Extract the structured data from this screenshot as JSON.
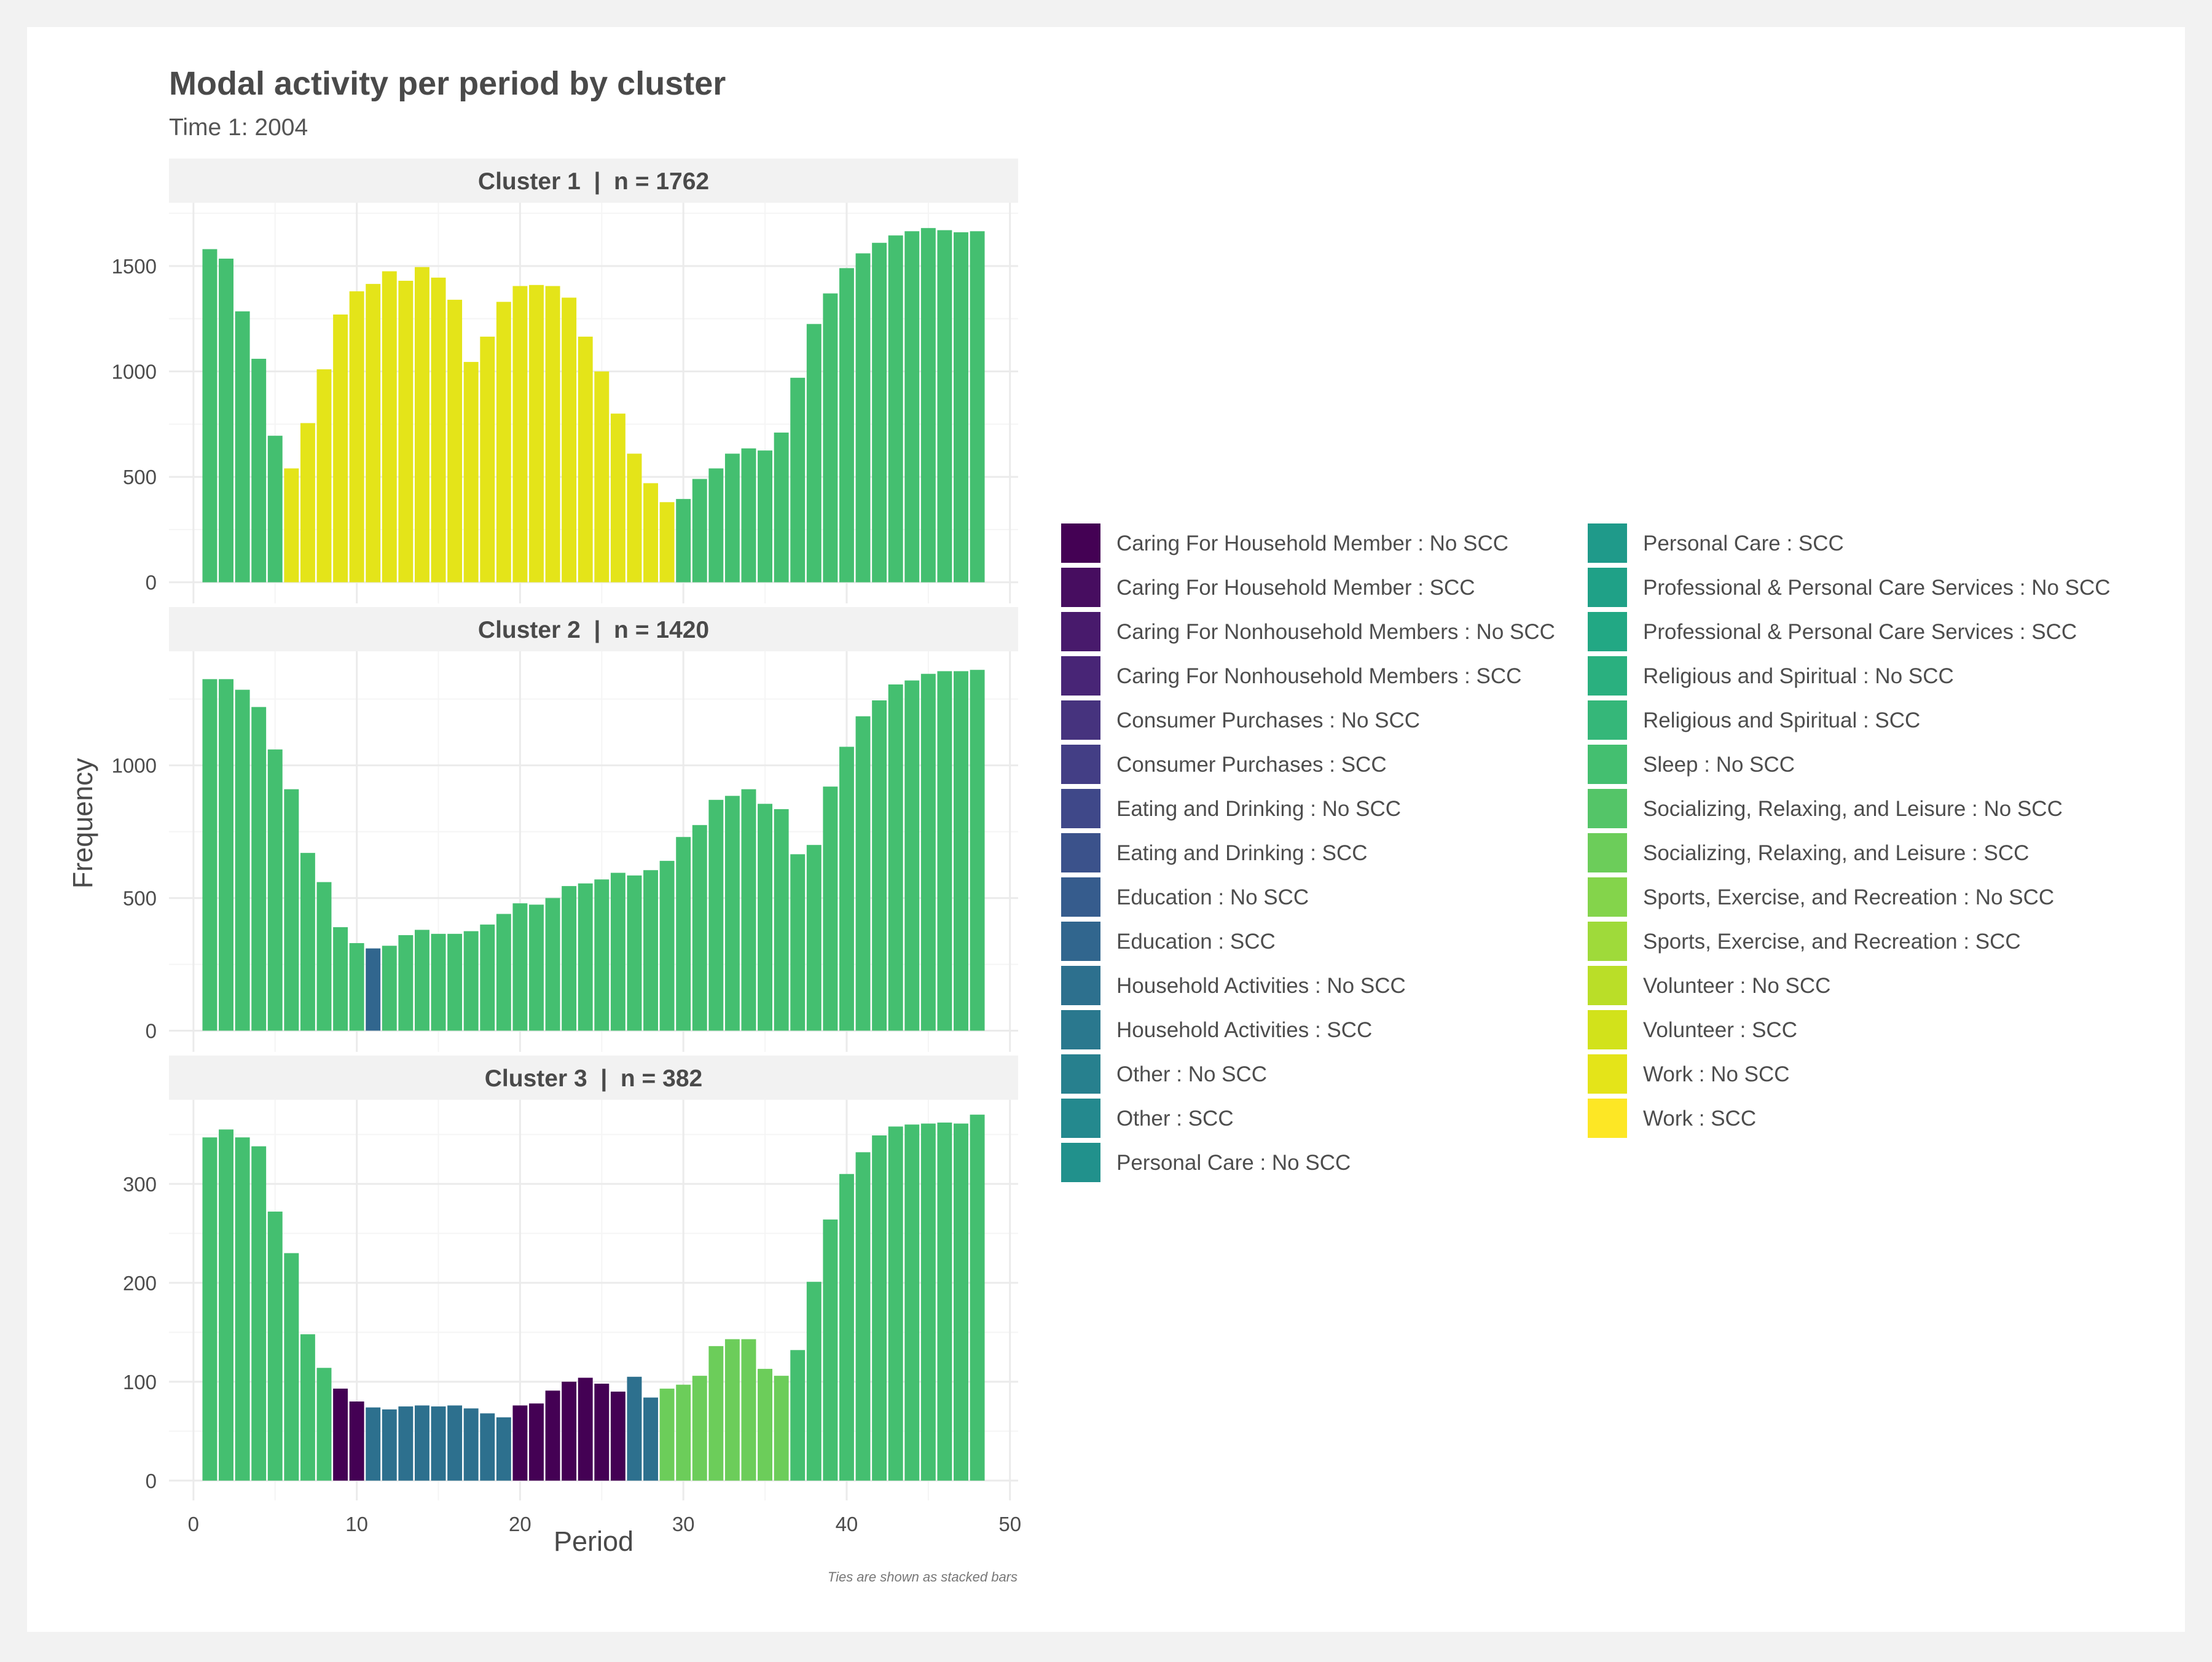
{
  "chart_data": {
    "type": "bar",
    "title": "Modal activity per period by cluster",
    "subtitle": "Time 1: 2004",
    "xlabel": "Period",
    "ylabel": "Frequency",
    "caption": "Ties are shown as stacked bars",
    "x_ticks": [
      0,
      10,
      20,
      30,
      40,
      50
    ],
    "xlim": [
      -1.5,
      50.5
    ],
    "legend_position": "right",
    "legend_title": "",
    "legend_entries": [
      {
        "label": "Caring For Household Member : No SCC",
        "color": "#440154"
      },
      {
        "label": "Caring For Household Member : SCC",
        "color": "#470D60"
      },
      {
        "label": "Caring For Nonhousehold Members : No SCC",
        "color": "#481A6C"
      },
      {
        "label": "Caring For Nonhousehold Members : SCC",
        "color": "#482576"
      },
      {
        "label": "Consumer Purchases : No SCC",
        "color": "#46337E"
      },
      {
        "label": "Consumer Purchases : SCC",
        "color": "#433E85"
      },
      {
        "label": "Eating and Drinking : No SCC",
        "color": "#3F4889"
      },
      {
        "label": "Eating and Drinking : SCC",
        "color": "#3B528B"
      },
      {
        "label": "Education : No SCC",
        "color": "#365C8D"
      },
      {
        "label": "Education : SCC",
        "color": "#31668E"
      },
      {
        "label": "Household Activities : No SCC",
        "color": "#2D708E"
      },
      {
        "label": "Household Activities : SCC",
        "color": "#2A788E"
      },
      {
        "label": "Other : No SCC",
        "color": "#27808E"
      },
      {
        "label": "Other : SCC",
        "color": "#24898E"
      },
      {
        "label": "Personal Care : No SCC",
        "color": "#21918C"
      },
      {
        "label": "Personal Care : SCC",
        "color": "#1F9A8A"
      },
      {
        "label": "Professional & Personal Care Services : No SCC",
        "color": "#1FA187"
      },
      {
        "label": "Professional & Personal Care Services : SCC",
        "color": "#22A884"
      },
      {
        "label": "Religious and Spiritual : No SCC",
        "color": "#2AB07F"
      },
      {
        "label": "Religious and Spiritual : SCC",
        "color": "#35B779"
      },
      {
        "label": "Sleep : No SCC",
        "color": "#44BF70"
      },
      {
        "label": "Socializing, Relaxing, and Leisure : No SCC",
        "color": "#54C568"
      },
      {
        "label": "Socializing, Relaxing, and Leisure : SCC",
        "color": "#6CCD5A"
      },
      {
        "label": "Sports, Exercise, and Recreation : No SCC",
        "color": "#84D44B"
      },
      {
        "label": "Sports, Exercise, and Recreation : SCC",
        "color": "#9FDA3A"
      },
      {
        "label": "Volunteer : No SCC",
        "color": "#BADE28"
      },
      {
        "label": "Volunteer : SCC",
        "color": "#D2E21B"
      },
      {
        "label": "Work : No SCC",
        "color": "#E4E419"
      },
      {
        "label": "Work : SCC",
        "color": "#FDE725"
      }
    ],
    "panels": [
      {
        "strip": "Cluster 1  |  n = 1762",
        "ylim": [
          -100,
          1800
        ],
        "y_ticks": [
          0,
          500,
          1000,
          1500
        ],
        "x": [
          1,
          2,
          3,
          4,
          5,
          6,
          7,
          8,
          9,
          10,
          11,
          12,
          13,
          14,
          15,
          16,
          17,
          18,
          19,
          20,
          21,
          22,
          23,
          24,
          25,
          26,
          27,
          28,
          29,
          30,
          31,
          32,
          33,
          34,
          35,
          36,
          37,
          38,
          39,
          40,
          41,
          42,
          43,
          44,
          45,
          46,
          47,
          48
        ],
        "values": [
          1580,
          1535,
          1285,
          1060,
          695,
          540,
          755,
          1010,
          1270,
          1380,
          1415,
          1475,
          1430,
          1495,
          1445,
          1340,
          1045,
          1165,
          1330,
          1405,
          1410,
          1405,
          1350,
          1165,
          1000,
          800,
          610,
          470,
          380,
          395,
          490,
          540,
          610,
          635,
          625,
          710,
          970,
          1225,
          1370,
          1490,
          1560,
          1610,
          1645,
          1665,
          1680,
          1670,
          1660,
          1665
        ],
        "activities": [
          "Sleep : No SCC",
          "Sleep : No SCC",
          "Sleep : No SCC",
          "Sleep : No SCC",
          "Sleep : No SCC",
          "Work : No SCC",
          "Work : No SCC",
          "Work : No SCC",
          "Work : No SCC",
          "Work : No SCC",
          "Work : No SCC",
          "Work : No SCC",
          "Work : No SCC",
          "Work : No SCC",
          "Work : No SCC",
          "Work : No SCC",
          "Work : No SCC",
          "Work : No SCC",
          "Work : No SCC",
          "Work : No SCC",
          "Work : No SCC",
          "Work : No SCC",
          "Work : No SCC",
          "Work : No SCC",
          "Work : No SCC",
          "Work : No SCC",
          "Work : No SCC",
          "Work : No SCC",
          "Work : No SCC",
          "Sleep : No SCC",
          "Sleep : No SCC",
          "Sleep : No SCC",
          "Sleep : No SCC",
          "Sleep : No SCC",
          "Sleep : No SCC",
          "Sleep : No SCC",
          "Sleep : No SCC",
          "Sleep : No SCC",
          "Sleep : No SCC",
          "Sleep : No SCC",
          "Sleep : No SCC",
          "Sleep : No SCC",
          "Sleep : No SCC",
          "Sleep : No SCC",
          "Sleep : No SCC",
          "Sleep : No SCC",
          "Sleep : No SCC",
          "Sleep : No SCC"
        ]
      },
      {
        "strip": "Cluster 2  |  n = 1420",
        "ylim": [
          -80,
          1430
        ],
        "y_ticks": [
          0,
          500,
          1000
        ],
        "x": [
          1,
          2,
          3,
          4,
          5,
          6,
          7,
          8,
          9,
          10,
          11,
          12,
          13,
          14,
          15,
          16,
          17,
          18,
          19,
          20,
          21,
          22,
          23,
          24,
          25,
          26,
          27,
          28,
          29,
          30,
          31,
          32,
          33,
          34,
          35,
          36,
          37,
          38,
          39,
          40,
          41,
          42,
          43,
          44,
          45,
          46,
          47,
          48
        ],
        "values": [
          1325,
          1325,
          1285,
          1220,
          1060,
          910,
          670,
          560,
          390,
          330,
          310,
          320,
          360,
          380,
          365,
          365,
          375,
          400,
          440,
          480,
          475,
          500,
          545,
          555,
          570,
          595,
          585,
          605,
          640,
          730,
          775,
          870,
          885,
          910,
          855,
          835,
          665,
          700,
          920,
          1070,
          1185,
          1245,
          1305,
          1320,
          1345,
          1355,
          1355,
          1360
        ],
        "activities": [
          "Sleep : No SCC",
          "Sleep : No SCC",
          "Sleep : No SCC",
          "Sleep : No SCC",
          "Sleep : No SCC",
          "Sleep : No SCC",
          "Sleep : No SCC",
          "Sleep : No SCC",
          "Sleep : No SCC",
          "Sleep : No SCC",
          "Education : SCC",
          "Sleep : No SCC",
          "Sleep : No SCC",
          "Sleep : No SCC",
          "Sleep : No SCC",
          "Sleep : No SCC",
          "Sleep : No SCC",
          "Sleep : No SCC",
          "Sleep : No SCC",
          "Sleep : No SCC",
          "Sleep : No SCC",
          "Sleep : No SCC",
          "Sleep : No SCC",
          "Sleep : No SCC",
          "Sleep : No SCC",
          "Sleep : No SCC",
          "Sleep : No SCC",
          "Sleep : No SCC",
          "Sleep : No SCC",
          "Sleep : No SCC",
          "Sleep : No SCC",
          "Sleep : No SCC",
          "Sleep : No SCC",
          "Sleep : No SCC",
          "Sleep : No SCC",
          "Sleep : No SCC",
          "Sleep : No SCC",
          "Sleep : No SCC",
          "Sleep : No SCC",
          "Sleep : No SCC",
          "Sleep : No SCC",
          "Sleep : No SCC",
          "Sleep : No SCC",
          "Sleep : No SCC",
          "Sleep : No SCC",
          "Sleep : No SCC",
          "Sleep : No SCC",
          "Sleep : No SCC"
        ]
      },
      {
        "strip": "Cluster 3  |  n = 382",
        "ylim": [
          -20,
          385
        ],
        "y_ticks": [
          0,
          100,
          200,
          300
        ],
        "x": [
          1,
          2,
          3,
          4,
          5,
          6,
          7,
          8,
          9,
          10,
          11,
          12,
          13,
          14,
          15,
          16,
          17,
          18,
          19,
          20,
          21,
          22,
          23,
          24,
          25,
          26,
          27,
          28,
          29,
          30,
          31,
          32,
          33,
          34,
          35,
          36,
          37,
          38,
          39,
          40,
          41,
          42,
          43,
          44,
          45,
          46,
          47,
          48
        ],
        "values": [
          347,
          355,
          347,
          338,
          272,
          230,
          148,
          114,
          93,
          80,
          74,
          72,
          75,
          76,
          75,
          76,
          73,
          68,
          64,
          76,
          78,
          91,
          100,
          104,
          98,
          90,
          105,
          84,
          93,
          97,
          106,
          136,
          143,
          143,
          113,
          106,
          132,
          201,
          264,
          310,
          332,
          349,
          358,
          360,
          361,
          362,
          361,
          370
        ],
        "activities": [
          "Sleep : No SCC",
          "Sleep : No SCC",
          "Sleep : No SCC",
          "Sleep : No SCC",
          "Sleep : No SCC",
          "Sleep : No SCC",
          "Sleep : No SCC",
          "Sleep : No SCC",
          "Caring For Household Member : No SCC",
          "Caring For Household Member : No SCC",
          "Household Activities : No SCC",
          "Household Activities : No SCC",
          "Household Activities : No SCC",
          "Household Activities : No SCC",
          "Household Activities : No SCC",
          "Household Activities : No SCC",
          "Household Activities : No SCC",
          "Household Activities : No SCC",
          "Household Activities : No SCC",
          "Caring For Household Member : No SCC",
          "Caring For Household Member : No SCC",
          "Caring For Household Member : No SCC",
          "Caring For Household Member : No SCC",
          "Caring For Household Member : No SCC",
          "Caring For Household Member : No SCC",
          "Caring For Household Member : No SCC",
          "Household Activities : No SCC",
          "Household Activities : No SCC",
          "Socializing, Relaxing, and Leisure : SCC",
          "Socializing, Relaxing, and Leisure : SCC",
          "Socializing, Relaxing, and Leisure : SCC",
          "Socializing, Relaxing, and Leisure : SCC",
          "Socializing, Relaxing, and Leisure : SCC",
          "Socializing, Relaxing, and Leisure : SCC",
          "Socializing, Relaxing, and Leisure : SCC",
          "Socializing, Relaxing, and Leisure : SCC",
          "Sleep : No SCC",
          "Sleep : No SCC",
          "Sleep : No SCC",
          "Sleep : No SCC",
          "Sleep : No SCC",
          "Sleep : No SCC",
          "Sleep : No SCC",
          "Sleep : No SCC",
          "Sleep : No SCC",
          "Sleep : No SCC",
          "Sleep : No SCC",
          "Sleep : No SCC"
        ]
      }
    ]
  }
}
